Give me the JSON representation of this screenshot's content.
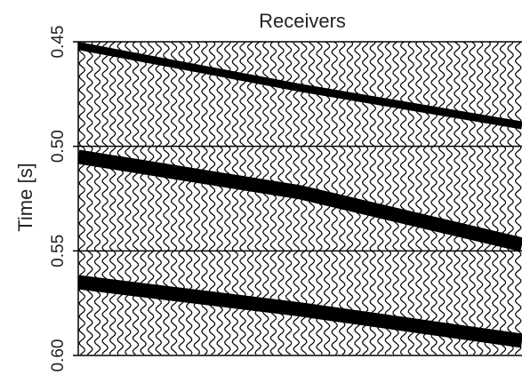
{
  "chart_data": {
    "type": "wiggle",
    "title": "Receivers",
    "y_label": "Time [s]",
    "ylim": [
      0.45,
      0.6
    ],
    "y_inverted": true,
    "yticks": [
      0.45,
      {
        "value": 0.5,
        "label": "0.50"
      },
      0.55,
      {
        "value": 0.6,
        "label": "0.60"
      }
    ],
    "grid": true,
    "categories": [
      null,
      null,
      null
    ],
    "series": [
      {
        "color": "#000000",
        "values": [
          0.452,
          0.472,
          0.49
        ]
      },
      {
        "color": "#000000",
        "values": [
          0.505,
          0.522,
          0.547
        ]
      },
      {
        "color": "#000000",
        "values": [
          0.565,
          0.578,
          0.593
        ]
      }
    ]
  }
}
